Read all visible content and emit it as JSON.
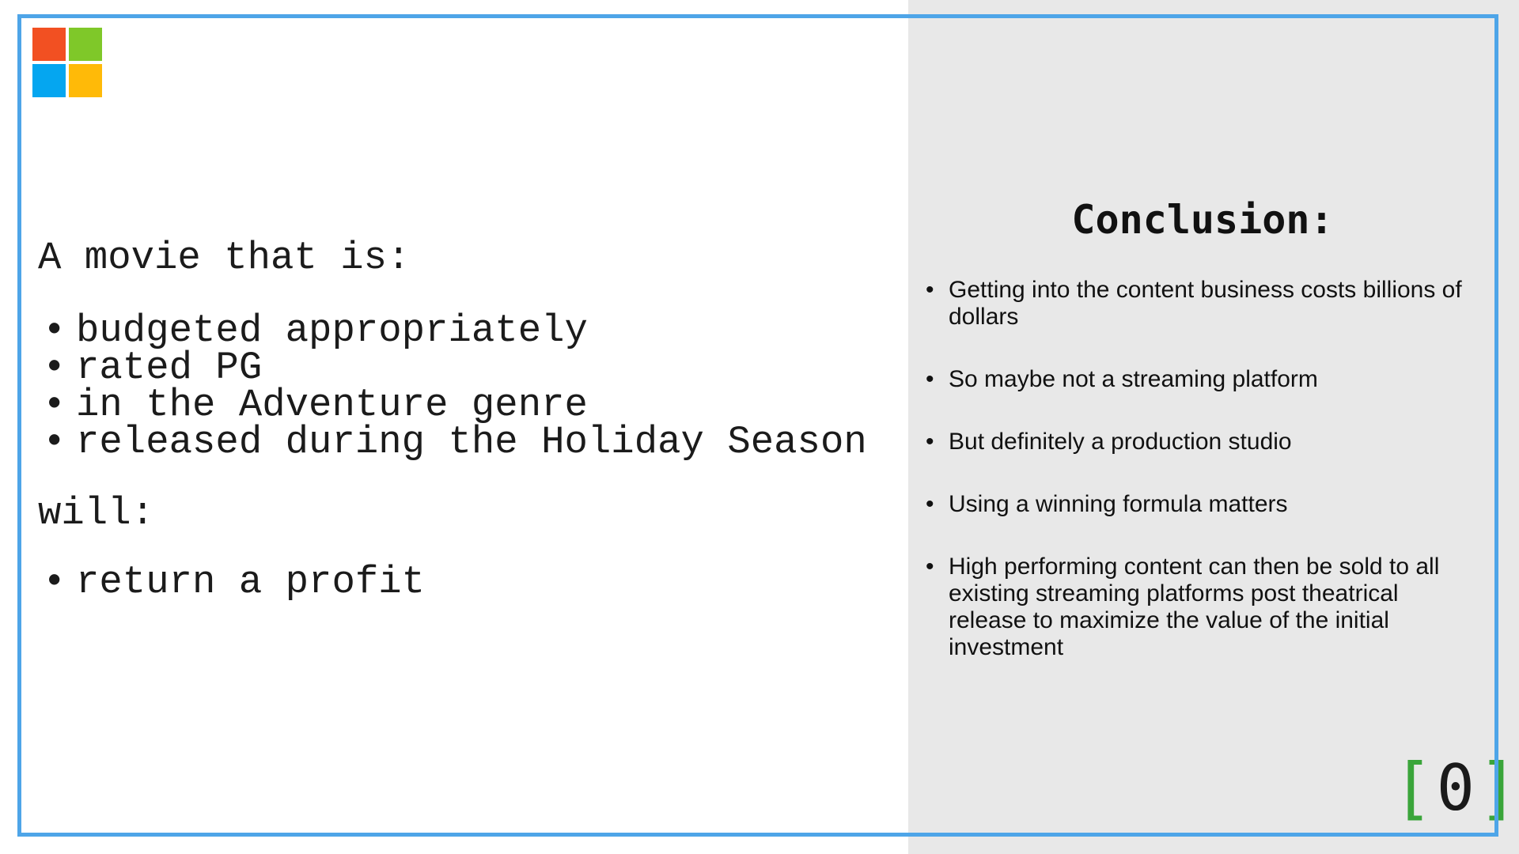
{
  "left": {
    "lead": "A movie that is:",
    "criteria": [
      "budgeted appropriately",
      "rated PG",
      "in the Adventure genre",
      "released during the Holiday Season"
    ],
    "will_label": "will:",
    "outcomes": [
      "return a profit"
    ],
    "bullet": "•"
  },
  "right": {
    "title": "Conclusion:",
    "points": [
      "Getting into the content business costs billions of dollars",
      "So maybe not a streaming platform",
      "But definitely a production studio",
      "Using a winning formula matters",
      "High performing content can then be sold to all existing streaming platforms post theatrical release to maximize the value of the initial investment"
    ],
    "bullet": "•"
  },
  "brand": {
    "open_bracket": "[",
    "zero": "0",
    "close_bracket": "]",
    "bracket_color": "#3aa53a"
  },
  "logo": {
    "icon": "four-square-windows-logo-icon",
    "colors": [
      "#f25022",
      "#7fc829",
      "#05a6f0",
      "#ffba08"
    ]
  },
  "theme": {
    "frame_color": "#4ea5e8",
    "panel_color": "#e8e8e8"
  }
}
